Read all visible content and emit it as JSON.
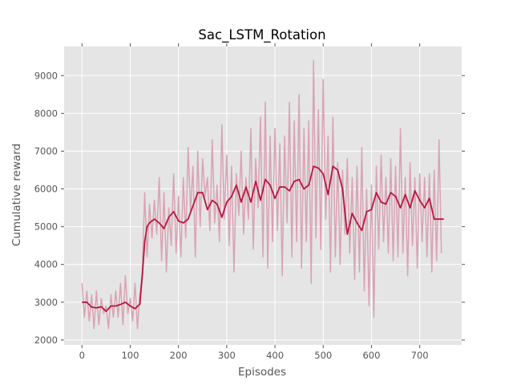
{
  "chart_data": {
    "type": "line",
    "title": "Sac_LSTM_Rotation",
    "xlabel": "Episodes",
    "ylabel": "Cumulative reward",
    "xlim": [
      -37,
      787
    ],
    "ylim": [
      1870,
      9770
    ],
    "xticks": [
      0,
      100,
      200,
      300,
      400,
      500,
      600,
      700
    ],
    "yticks": [
      2000,
      3000,
      4000,
      5000,
      6000,
      7000,
      8000,
      9000
    ],
    "grid": true,
    "colors": {
      "raw": "#d9a3b4",
      "smoothed": "#b8153f",
      "background": "#e5e5e5",
      "grid": "#ffffff"
    },
    "series": [
      {
        "role": "raw",
        "x": [
          0,
          5,
          10,
          15,
          20,
          25,
          30,
          35,
          40,
          45,
          50,
          55,
          60,
          65,
          70,
          75,
          80,
          85,
          90,
          95,
          100,
          105,
          110,
          115,
          120,
          125,
          130,
          135,
          140,
          145,
          150,
          155,
          160,
          165,
          170,
          175,
          180,
          185,
          190,
          195,
          200,
          205,
          210,
          215,
          220,
          225,
          230,
          235,
          240,
          245,
          250,
          255,
          260,
          265,
          270,
          275,
          280,
          285,
          290,
          295,
          300,
          305,
          310,
          315,
          320,
          325,
          330,
          335,
          340,
          345,
          350,
          355,
          360,
          365,
          370,
          375,
          380,
          385,
          390,
          395,
          400,
          405,
          410,
          415,
          420,
          425,
          430,
          435,
          440,
          445,
          450,
          455,
          460,
          465,
          470,
          475,
          480,
          485,
          490,
          495,
          500,
          505,
          510,
          515,
          520,
          525,
          530,
          535,
          540,
          545,
          550,
          555,
          560,
          565,
          570,
          575,
          580,
          585,
          590,
          595,
          600,
          605,
          610,
          615,
          620,
          625,
          630,
          635,
          640,
          645,
          650,
          655,
          660,
          665,
          670,
          675,
          680,
          685,
          690,
          695,
          700,
          705,
          710,
          715,
          720,
          725,
          730,
          735,
          740,
          745
        ],
        "y": [
          3500,
          2600,
          3300,
          2500,
          3200,
          2300,
          3300,
          2400,
          3100,
          2700,
          2900,
          2300,
          3200,
          2600,
          3300,
          2600,
          3500,
          2400,
          3700,
          2700,
          3100,
          2500,
          3500,
          2300,
          3200,
          3800,
          5900,
          4200,
          5600,
          4700,
          5700,
          4800,
          6300,
          4100,
          5900,
          3800,
          5500,
          4500,
          6400,
          4300,
          5800,
          4200,
          6300,
          4700,
          7100,
          5400,
          6600,
          4200,
          7000,
          5000,
          6800,
          5800,
          6300,
          4900,
          7300,
          5100,
          6100,
          4600,
          7700,
          5200,
          6900,
          4500,
          6600,
          3800,
          6400,
          5300,
          7000,
          4800,
          6300,
          5200,
          7600,
          4400,
          6800,
          5500,
          7900,
          4200,
          8300,
          3900,
          7400,
          4600,
          7600,
          4900,
          7200,
          3700,
          7400,
          5100,
          8300,
          4200,
          7800,
          4600,
          8500,
          3900,
          7600,
          4600,
          7800,
          3500,
          9400,
          4700,
          8100,
          4400,
          8900,
          5200,
          7400,
          3800,
          7900,
          4200,
          6700,
          4000,
          6500,
          4800,
          6800,
          4300,
          6300,
          3600,
          6600,
          3800,
          7100,
          3300,
          6000,
          2900,
          6100,
          2600,
          6600,
          4400,
          6900,
          4600,
          6300,
          4300,
          6800,
          4100,
          6600,
          4200,
          7600,
          4300,
          6300,
          3700,
          6700,
          4500,
          6300,
          3900,
          6400,
          4600,
          6300,
          4200,
          6400,
          3800,
          6500,
          4100,
          7300,
          4300
        ]
      },
      {
        "role": "smoothed",
        "x": [
          0,
          10,
          20,
          30,
          40,
          50,
          60,
          70,
          80,
          90,
          100,
          110,
          120,
          125,
          130,
          135,
          140,
          150,
          160,
          170,
          180,
          190,
          200,
          210,
          220,
          230,
          240,
          250,
          260,
          270,
          280,
          290,
          300,
          310,
          320,
          330,
          340,
          350,
          360,
          370,
          380,
          390,
          400,
          410,
          420,
          430,
          440,
          450,
          460,
          470,
          480,
          490,
          500,
          510,
          520,
          530,
          540,
          550,
          560,
          570,
          580,
          590,
          600,
          610,
          620,
          630,
          640,
          650,
          660,
          670,
          680,
          690,
          700,
          710,
          720,
          730,
          740,
          750
        ],
        "y": [
          3000,
          3000,
          2870,
          2850,
          2880,
          2760,
          2900,
          2900,
          2940,
          3000,
          2900,
          2830,
          2950,
          3700,
          4600,
          5000,
          5100,
          5200,
          5100,
          4950,
          5250,
          5400,
          5150,
          5100,
          5200,
          5550,
          5900,
          5900,
          5450,
          5700,
          5600,
          5250,
          5650,
          5800,
          6100,
          5650,
          6050,
          5650,
          6200,
          5700,
          6250,
          6100,
          5750,
          6050,
          6050,
          5950,
          6200,
          6250,
          6000,
          6100,
          6600,
          6550,
          6400,
          5850,
          6600,
          6500,
          6000,
          4800,
          5350,
          5100,
          4900,
          5400,
          5450,
          5900,
          5650,
          5600,
          5900,
          5800,
          5500,
          5850,
          5500,
          5950,
          5700,
          5500,
          5750,
          5200,
          5200,
          5200
        ]
      }
    ]
  }
}
